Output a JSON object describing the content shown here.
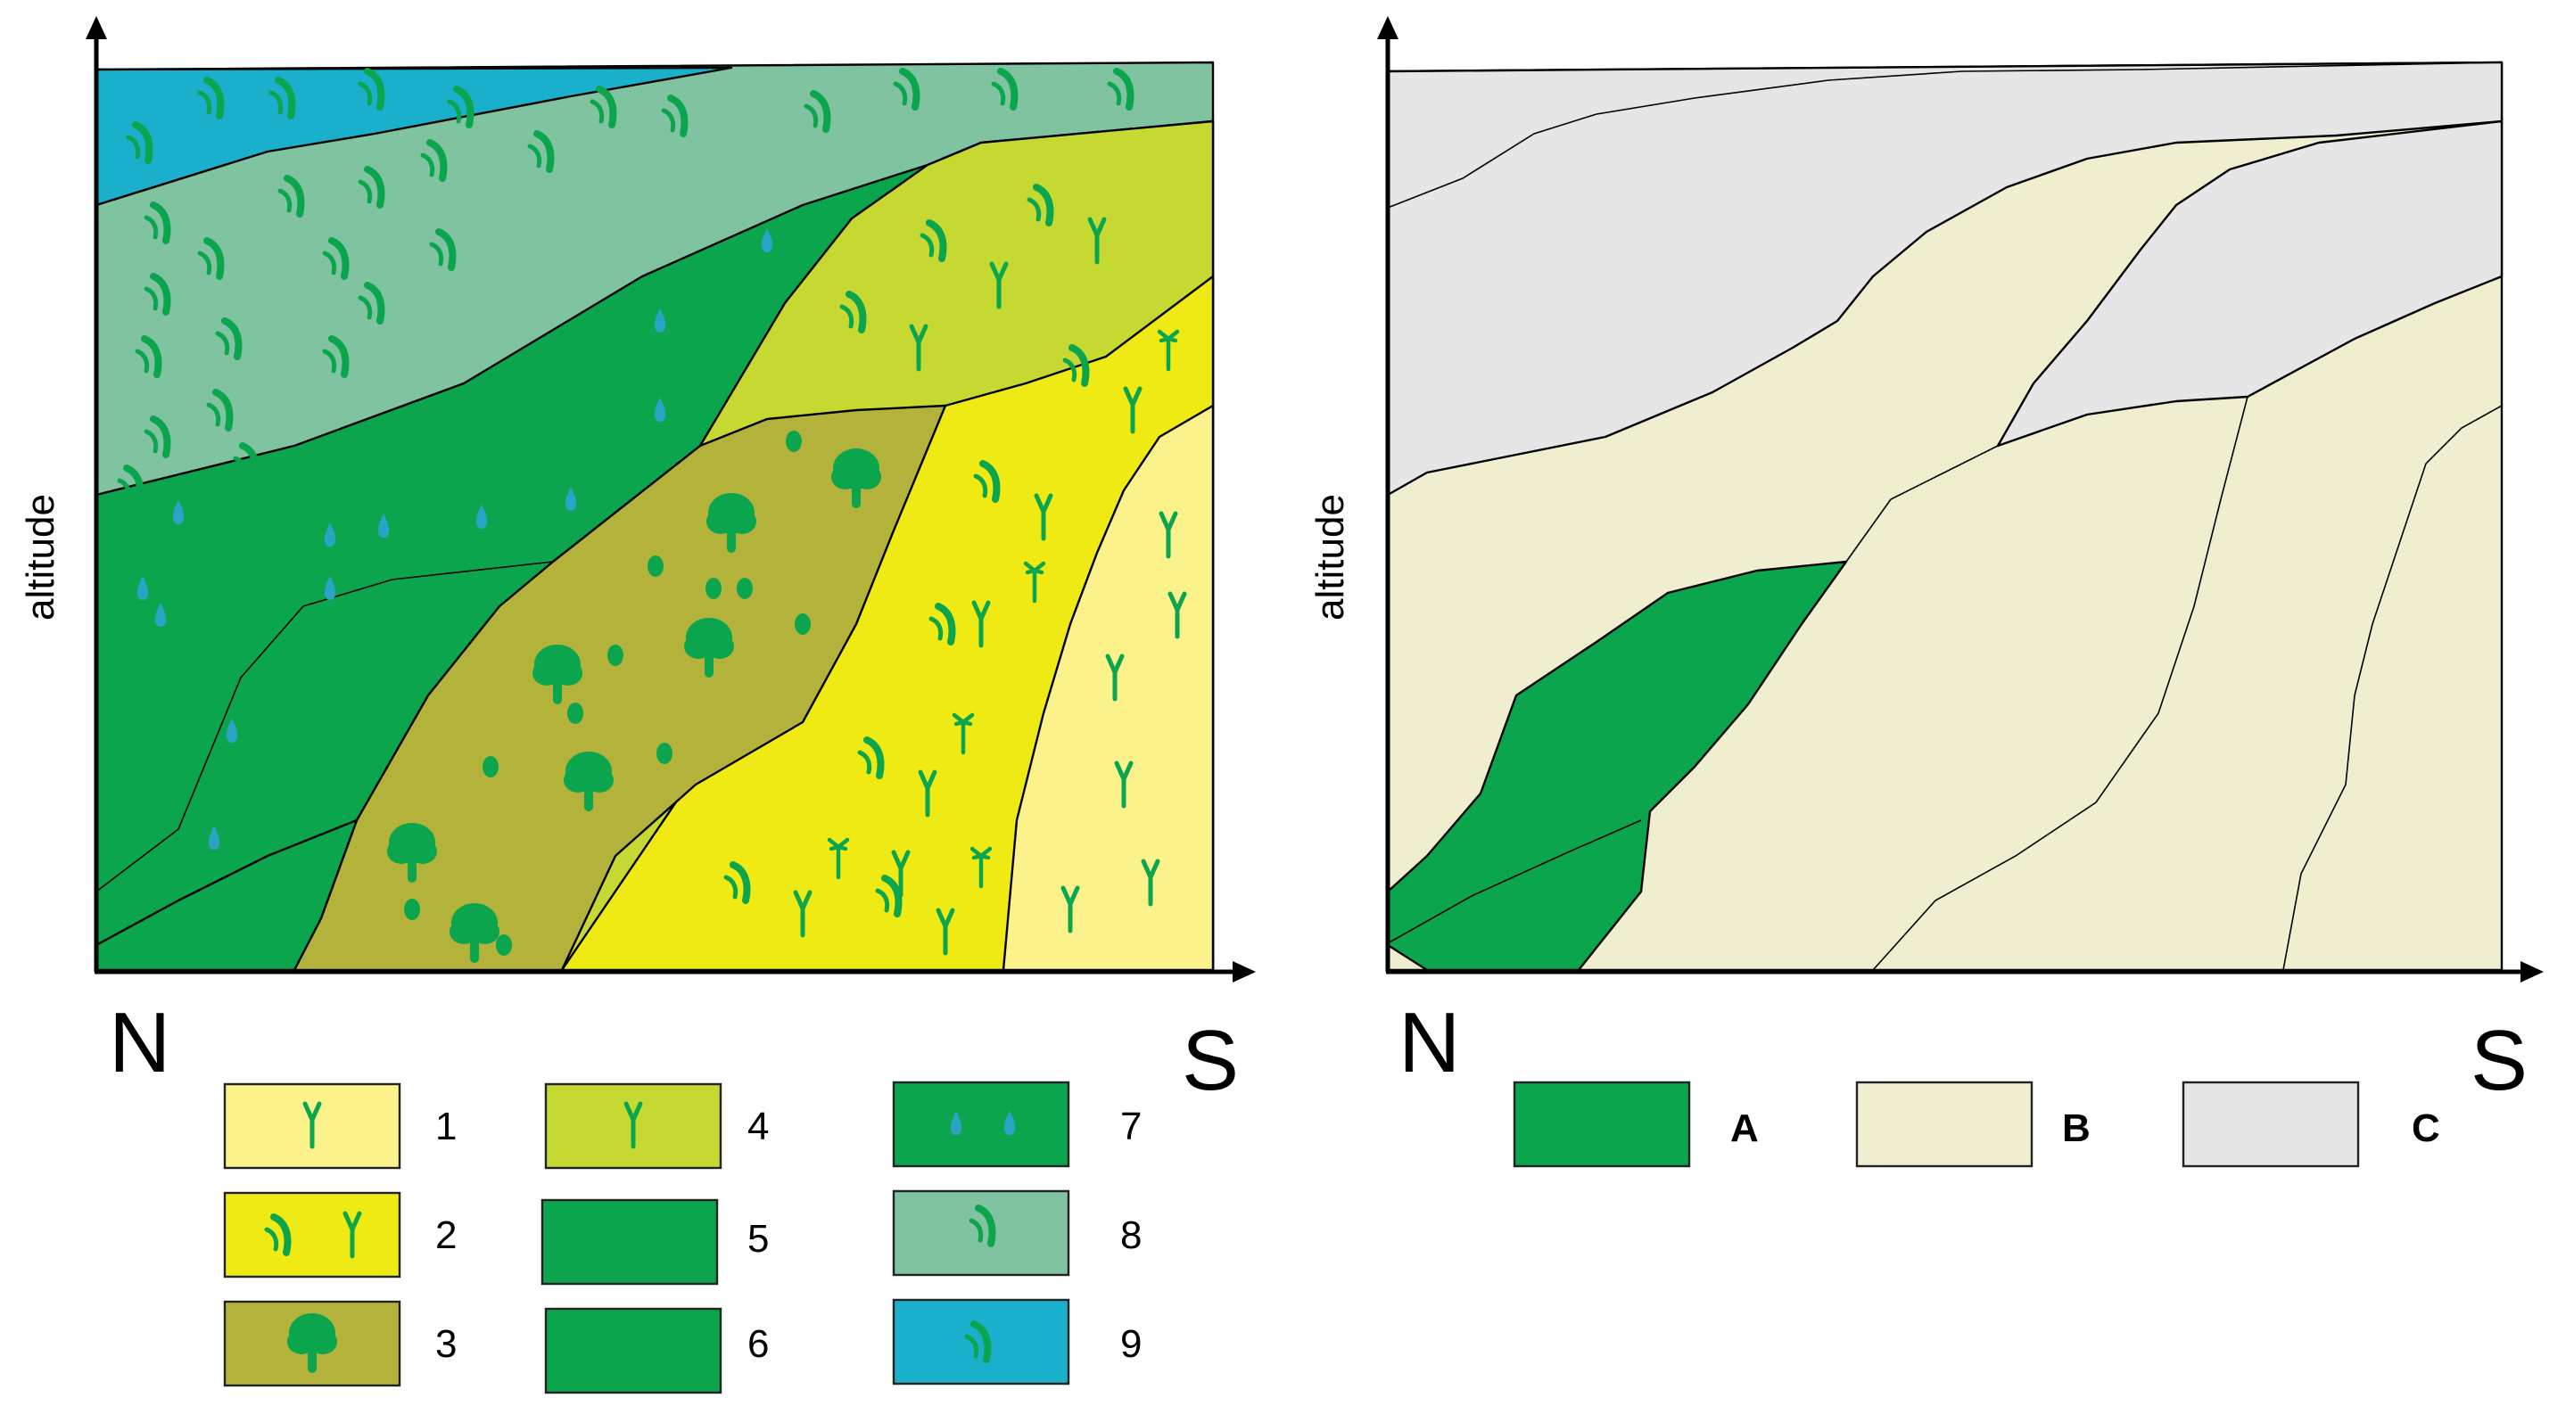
{
  "left_diagram": {
    "y_axis_label": "altitude",
    "x_start_label": "N",
    "x_end_label": "S",
    "zones": [
      {
        "id": "1",
        "color": "#fbf28c",
        "symbol": "grass-icon"
      },
      {
        "id": "2",
        "color": "#f0ea14",
        "symbol": "grass-tuft-icon"
      },
      {
        "id": "3",
        "color": "#b3b33c",
        "symbol": "tree-icon"
      },
      {
        "id": "4",
        "color": "#c6d932",
        "symbol": "grass-icon"
      },
      {
        "id": "5",
        "color": "#0aa54c",
        "symbol": ""
      },
      {
        "id": "6",
        "color": "#0aa54c",
        "symbol": ""
      },
      {
        "id": "7",
        "color": "#0aa54c",
        "symbol": "drop-icon"
      },
      {
        "id": "8",
        "color": "#7fc3a0",
        "symbol": "tuft-icon"
      },
      {
        "id": "9",
        "color": "#1ab0cc",
        "symbol": "tuft-icon"
      }
    ]
  },
  "right_diagram": {
    "y_axis_label": "altitude",
    "x_start_label": "N",
    "x_end_label": "S",
    "classes": [
      {
        "label": "A",
        "color": "#0aa54c"
      },
      {
        "label": "B",
        "color": "#efefd0"
      },
      {
        "label": "C",
        "color": "#e6e6e6"
      }
    ]
  }
}
